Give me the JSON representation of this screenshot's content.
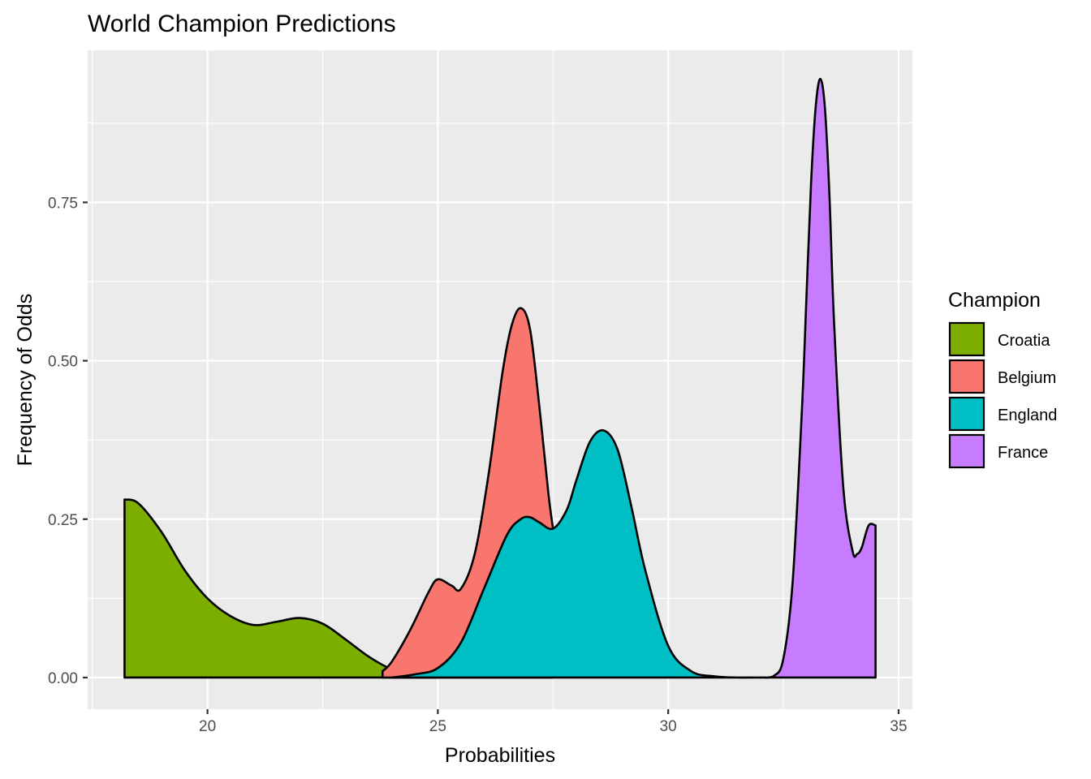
{
  "chart_data": {
    "type": "area",
    "title": "World Champion Predictions",
    "xlabel": "Probabilities",
    "ylabel": "Frequency of Odds",
    "xlim": [
      17.4,
      35.3
    ],
    "ylim": [
      -0.05,
      0.99
    ],
    "xticks": [
      20,
      25,
      30,
      35
    ],
    "xtick_labels": [
      "20",
      "25",
      "30",
      "35"
    ],
    "yticks": [
      0,
      0.25,
      0.5,
      0.75
    ],
    "ytick_labels": [
      "0.00",
      "0.25",
      "0.50",
      "0.75"
    ],
    "grid": true,
    "legend": {
      "title": "Champion",
      "position": "right"
    },
    "series": [
      {
        "name": "Croatia",
        "color": "#7CAE00",
        "x": [
          18.2,
          18.5,
          19.0,
          19.5,
          20.0,
          20.5,
          21.0,
          21.5,
          22.0,
          22.5,
          23.0,
          23.5,
          24.0,
          24.5,
          25.0
        ],
        "y": [
          0.281,
          0.275,
          0.23,
          0.17,
          0.125,
          0.097,
          0.083,
          0.088,
          0.094,
          0.085,
          0.06,
          0.033,
          0.013,
          0.004,
          0.0
        ]
      },
      {
        "name": "Belgium",
        "color": "#F8766D",
        "x": [
          23.8,
          24.0,
          24.4,
          24.8,
          25.0,
          25.3,
          25.5,
          25.8,
          26.1,
          26.4,
          26.6,
          26.8,
          27.0,
          27.2,
          27.4,
          27.5
        ],
        "y": [
          0.01,
          0.025,
          0.075,
          0.135,
          0.155,
          0.145,
          0.14,
          0.195,
          0.32,
          0.48,
          0.555,
          0.583,
          0.55,
          0.43,
          0.29,
          0.235
        ]
      },
      {
        "name": "England",
        "color": "#00BFC4",
        "x": [
          24.0,
          24.5,
          25.0,
          25.5,
          26.0,
          26.5,
          26.8,
          27.0,
          27.2,
          27.5,
          27.8,
          28.0,
          28.3,
          28.6,
          28.9,
          29.2,
          29.5,
          30.0,
          30.5,
          31.0,
          31.5,
          32.0
        ],
        "y": [
          0.0,
          0.005,
          0.015,
          0.055,
          0.14,
          0.225,
          0.25,
          0.253,
          0.245,
          0.235,
          0.265,
          0.31,
          0.372,
          0.39,
          0.36,
          0.27,
          0.17,
          0.05,
          0.01,
          0.002,
          0.0,
          0.0
        ]
      },
      {
        "name": "France",
        "color": "#C77CFF",
        "x": [
          32.0,
          32.3,
          32.5,
          32.7,
          32.9,
          33.0,
          33.1,
          33.2,
          33.3,
          33.4,
          33.5,
          33.6,
          33.8,
          34.0,
          34.1,
          34.2,
          34.35,
          34.5
        ],
        "y": [
          0.0,
          0.003,
          0.03,
          0.15,
          0.42,
          0.6,
          0.78,
          0.9,
          0.945,
          0.9,
          0.76,
          0.56,
          0.3,
          0.2,
          0.195,
          0.205,
          0.24,
          0.24
        ]
      }
    ]
  }
}
